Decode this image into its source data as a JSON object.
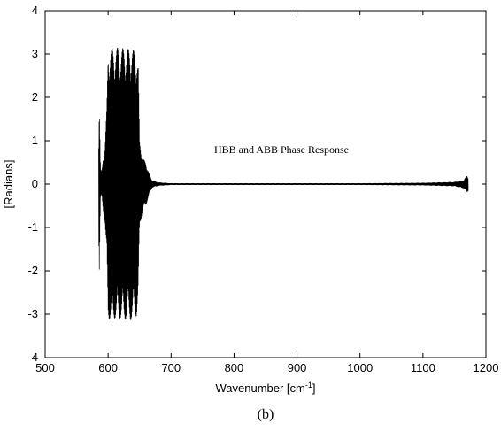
{
  "chart_data": {
    "type": "line",
    "title": "",
    "xlabel_base": "Wavenumber [cm",
    "xlabel_sup": "-1",
    "xlabel_close": "]",
    "ylabel": "[Radians]",
    "xlim": [
      500,
      1200
    ],
    "ylim": [
      -4,
      4
    ],
    "xticks": [
      500,
      600,
      700,
      800,
      900,
      1000,
      1100,
      1200
    ],
    "yticks": [
      -4,
      -3,
      -2,
      -1,
      0,
      1,
      2,
      3,
      4
    ],
    "grid": false,
    "legend": "none",
    "annotation": "HBB and ABB Phase Response",
    "series": [
      {
        "color": "#000000",
        "x": [
          585,
          586,
          588,
          590,
          592,
          595,
          598,
          600,
          605,
          610,
          615,
          620,
          625,
          630,
          635,
          640,
          645,
          648,
          650,
          655,
          660,
          665,
          670,
          680,
          700,
          800,
          900,
          1000,
          1100,
          1150,
          1165,
          1170,
          1172
        ],
        "amplitude": [
          1.1,
          2.05,
          0.35,
          0.3,
          0.6,
          0.9,
          1.8,
          3.1,
          3.15,
          3.1,
          3.15,
          3.1,
          3.15,
          3.1,
          3.15,
          3.1,
          3.05,
          2.7,
          1.0,
          0.6,
          0.5,
          0.25,
          0.08,
          0.04,
          0.02,
          0.02,
          0.02,
          0.02,
          0.03,
          0.05,
          0.1,
          0.2,
          0.15
        ]
      }
    ]
  },
  "caption": "(b)"
}
